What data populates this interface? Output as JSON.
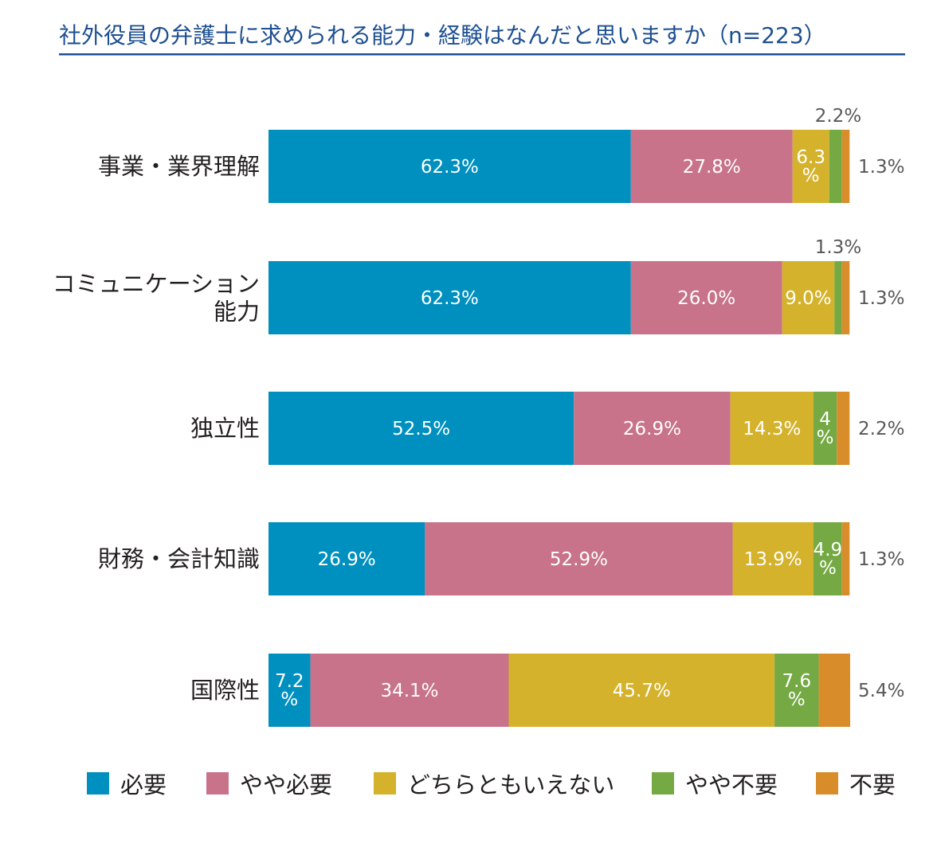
{
  "chart_data": {
    "type": "bar",
    "orientation": "horizontal",
    "stacked": true,
    "title": "社外役員の弁護士に求められる能力・経験はなんだと思いますか（n=223）",
    "categories": [
      [
        "事業・業界理解"
      ],
      [
        "コミュニケーション",
        "能力"
      ],
      [
        "独立性"
      ],
      [
        "財務・会計知識"
      ],
      [
        "国際性"
      ]
    ],
    "series": [
      {
        "name": "必要",
        "color": "#0090bf",
        "values": [
          62.3,
          62.3,
          52.5,
          26.9,
          7.2
        ]
      },
      {
        "name": "やや必要",
        "color": "#c87389",
        "values": [
          27.8,
          26.0,
          26.9,
          52.9,
          34.1
        ]
      },
      {
        "name": "どちらともいえない",
        "color": "#d5b22b",
        "values": [
          6.3,
          9.0,
          14.3,
          13.9,
          45.7
        ]
      },
      {
        "name": "やや不要",
        "color": "#74a943",
        "values": [
          2.2,
          1.3,
          4,
          4.9,
          7.6
        ]
      },
      {
        "name": "不要",
        "color": "#d98d2a",
        "values": [
          1.3,
          1.3,
          2.2,
          1.3,
          5.4
        ]
      }
    ],
    "bar_labels": [
      [
        "62.3%",
        "27.8%",
        [
          "6.3",
          "%"
        ],
        null,
        null
      ],
      [
        "62.3%",
        "26.0%",
        "9.0%",
        null,
        null
      ],
      [
        "52.5%",
        "26.9%",
        "14.3%",
        [
          "4",
          "%"
        ],
        null
      ],
      [
        "26.9%",
        "52.9%",
        "13.9%",
        [
          "4.9",
          "%"
        ],
        null
      ],
      [
        [
          "7.2",
          "%"
        ],
        "34.1%",
        "45.7%",
        [
          "7.6",
          "%"
        ],
        null
      ]
    ],
    "outside_labels_above": [
      "2.2%",
      "1.3%",
      null,
      null,
      null
    ],
    "outside_labels_right": [
      "1.3%",
      "1.3%",
      "2.2%",
      "1.3%",
      "5.4%"
    ],
    "xlim": [
      0,
      100
    ],
    "legend": {
      "position": "bottom"
    }
  }
}
